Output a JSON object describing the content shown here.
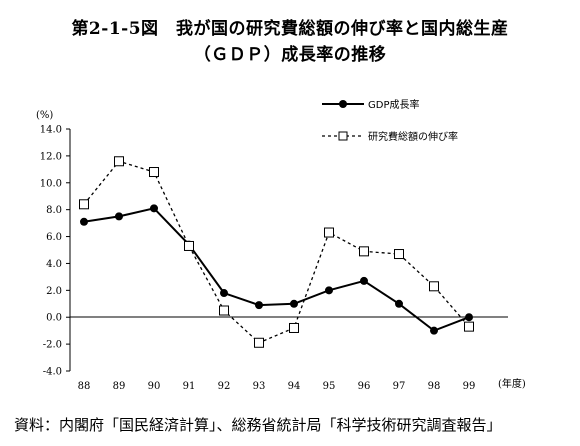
{
  "title_line1": "第2-1-5図　我が国の研究費総額の伸び率と国内総生産",
  "title_line2": "（ＧＤＰ）成長率の推移",
  "source": "資料：内閣府「国民経済計算」、総務省統計局「科学技術研究調査報告」",
  "chart_data": {
    "type": "line",
    "y_unit_label": "(%)",
    "x_unit_label": "(年度)",
    "x": [
      "88",
      "89",
      "90",
      "91",
      "92",
      "93",
      "94",
      "95",
      "96",
      "97",
      "98",
      "99"
    ],
    "yticks": [
      "14.0",
      "12.0",
      "10.0",
      "8.0",
      "6.0",
      "4.0",
      "2.0",
      "0.0",
      "-2.0",
      "-4.0"
    ],
    "ylim": [
      -4,
      14
    ],
    "legend_position": "top-right",
    "series": [
      {
        "name": "GDP成長率",
        "style": "solid",
        "marker": "filled-circle",
        "values": [
          7.1,
          7.5,
          8.1,
          5.4,
          1.8,
          0.9,
          1.0,
          2.0,
          2.7,
          1.0,
          -1.0,
          0.0
        ]
      },
      {
        "name": "研究費総額の伸び率",
        "style": "dashed",
        "marker": "open-square",
        "values": [
          8.4,
          11.6,
          10.8,
          5.3,
          0.5,
          -1.9,
          -0.8,
          6.3,
          4.9,
          4.7,
          2.3,
          -0.7
        ]
      }
    ]
  }
}
